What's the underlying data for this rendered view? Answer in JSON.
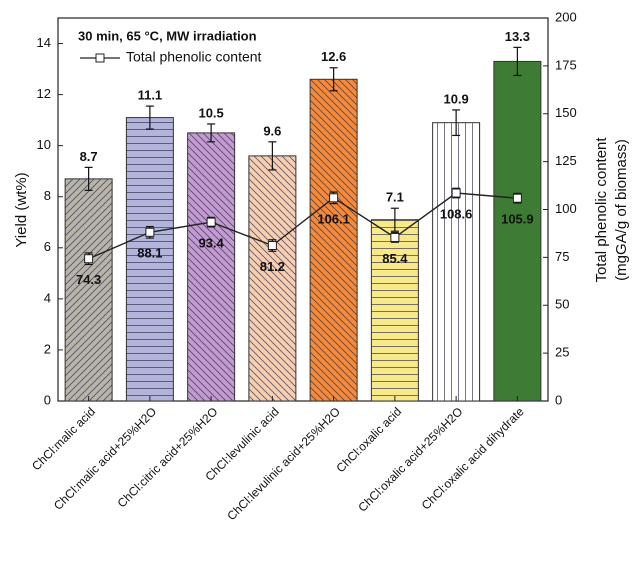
{
  "chart_data": {
    "type": "bar",
    "title": "30 min, 65 °C, MW irradiation",
    "categories": [
      "ChCl:malic acid",
      "ChCl:malic acid+25%H2O",
      "ChCl:citric acid+25%H2O",
      "ChCl:levulinic acid",
      "ChCl:levulinic acid+25%H2O",
      "ChCl:oxalic acid",
      "ChCl:oxalic acid+25%H2O",
      "ChCl:oxalic acid dihydrate"
    ],
    "ylabel": "Yield (wt%)",
    "y2label": [
      "Total phenolic content",
      "(mgGA/g of biomass)"
    ],
    "ylim": [
      0,
      15
    ],
    "yticks": [
      0,
      2,
      4,
      6,
      8,
      10,
      12,
      14
    ],
    "y2lim": [
      0,
      200
    ],
    "y2ticks": [
      0,
      25,
      50,
      75,
      100,
      125,
      150,
      175,
      200
    ],
    "legend": "top-left",
    "series": [
      {
        "colors": [
          "#b8b4aa",
          "#b3b4dc",
          "#c39bd0",
          "#f6cfb3",
          "#f58a3a",
          "#f7e88a",
          "#ffffff",
          "#3e7b35"
        ],
        "hatches": [
          "/",
          "-",
          "\\",
          "\\",
          "\\",
          "-",
          "|",
          null
        ],
        "values": [
          8.7,
          11.1,
          10.5,
          9.6,
          12.6,
          7.1,
          10.9,
          13.3
        ],
        "errors": [
          0.45,
          0.45,
          0.35,
          0.55,
          0.45,
          0.45,
          0.5,
          0.55
        ]
      },
      {
        "name": "Total phenolic content",
        "type": "line",
        "axis": "y2",
        "color": "#222222",
        "values": [
          74.3,
          88.1,
          93.4,
          81.2,
          106.1,
          85.4,
          108.6,
          105.9
        ],
        "errors": [
          3,
          3,
          2.5,
          3,
          3,
          2.5,
          2.5,
          2.5
        ]
      }
    ]
  }
}
